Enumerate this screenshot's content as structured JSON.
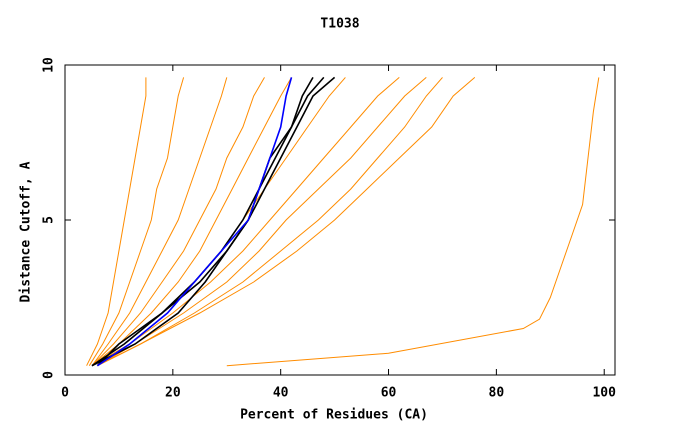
{
  "chart_data": {
    "type": "line",
    "title": "T1038",
    "x_label": "Percent of Residues (CA)",
    "y_label": "Distance Cutoff, A",
    "xlim": [
      0,
      102
    ],
    "ylim": [
      0,
      10
    ],
    "xticks": [
      0,
      20,
      40,
      60,
      80,
      100
    ],
    "yticks": [
      0,
      5,
      10
    ],
    "grid": false,
    "series": [
      {
        "color": "#ff8c00",
        "x": [
          4,
          6,
          8,
          9,
          10,
          11,
          12,
          13,
          14,
          15,
          15
        ],
        "values": [
          0.3,
          1,
          2,
          3,
          4,
          5,
          6,
          7,
          8,
          9,
          9.6
        ]
      },
      {
        "color": "#ff8c00",
        "x": [
          4.5,
          7,
          10,
          12,
          14,
          16,
          17,
          19,
          20,
          21,
          22
        ],
        "values": [
          0.3,
          1,
          2,
          3,
          4,
          5,
          6,
          7,
          8,
          9,
          9.6
        ]
      },
      {
        "color": "#ff8c00",
        "x": [
          5,
          8,
          12,
          15,
          18,
          21,
          23,
          25,
          27,
          29,
          30
        ],
        "values": [
          0.3,
          1,
          2,
          3,
          4,
          5,
          6,
          7,
          8,
          9,
          9.6
        ]
      },
      {
        "color": "#ff8c00",
        "x": [
          5,
          9,
          14,
          18,
          22,
          25,
          28,
          30,
          33,
          35,
          37
        ],
        "values": [
          0.3,
          1,
          2,
          3,
          4,
          5,
          6,
          7,
          8,
          9,
          9.6
        ]
      },
      {
        "color": "#ff8c00",
        "x": [
          5,
          10,
          16,
          21,
          25,
          28,
          31,
          34,
          37,
          40,
          42
        ],
        "values": [
          0.3,
          1,
          2,
          3,
          4,
          5,
          6,
          7,
          8,
          9,
          9.6
        ]
      },
      {
        "color": "#ff8c00",
        "x": [
          5,
          11,
          18,
          24,
          29,
          33,
          37,
          41,
          45,
          49,
          52
        ],
        "values": [
          0.3,
          1,
          2,
          3,
          4,
          5,
          6,
          7,
          8,
          9,
          9.6
        ]
      },
      {
        "color": "#ff8c00",
        "x": [
          5,
          12,
          20,
          27,
          33,
          38,
          43,
          48,
          53,
          58,
          62
        ],
        "values": [
          0.3,
          1,
          2,
          3,
          4,
          5,
          6,
          7,
          8,
          9,
          9.6
        ]
      },
      {
        "color": "#ff8c00",
        "x": [
          6,
          13,
          22,
          30,
          36,
          41,
          47,
          53,
          58,
          63,
          67
        ],
        "values": [
          0.3,
          1,
          2,
          3,
          4,
          5,
          6,
          7,
          8,
          9,
          9.6
        ]
      },
      {
        "color": "#ff8c00",
        "x": [
          6,
          14,
          24,
          33,
          40,
          47,
          53,
          58,
          63,
          67,
          70
        ],
        "values": [
          0.3,
          1,
          2,
          3,
          4,
          5,
          6,
          7,
          8,
          9,
          9.6
        ]
      },
      {
        "color": "#ff8c00",
        "x": [
          6,
          14,
          25,
          35,
          43,
          50,
          56,
          62,
          68,
          72,
          76
        ],
        "values": [
          0.3,
          1,
          2,
          3,
          4,
          5,
          6,
          7,
          8,
          9,
          9.6
        ]
      },
      {
        "color": "#ff8c00",
        "x": [
          30,
          60,
          85,
          88,
          90,
          92,
          94,
          96,
          97,
          98,
          99
        ],
        "values": [
          0.3,
          0.7,
          1.5,
          1.8,
          2.5,
          3.5,
          4.5,
          5.5,
          7,
          8.5,
          9.6
        ]
      },
      {
        "color": "#000000",
        "x": [
          5,
          11,
          18,
          24,
          29,
          33,
          36,
          38,
          42,
          45,
          48
        ],
        "values": [
          0.3,
          1,
          2,
          3,
          4,
          5,
          6,
          7,
          8,
          9,
          9.6
        ]
      },
      {
        "color": "#000000",
        "x": [
          5,
          13,
          21,
          26,
          30,
          34,
          37,
          40,
          43,
          46,
          50
        ],
        "values": [
          0.3,
          1,
          2,
          3,
          4,
          5,
          6,
          7,
          8,
          9,
          9.6
        ]
      },
      {
        "color": "#000000",
        "x": [
          6,
          10,
          18,
          25,
          30,
          34,
          36,
          39,
          42,
          44,
          46
        ],
        "values": [
          0.3,
          1,
          2,
          3,
          4,
          5,
          6,
          7,
          8,
          9,
          9.6
        ]
      },
      {
        "color": "#0000ff",
        "x": [
          6,
          12,
          19,
          24,
          29,
          34,
          36,
          38,
          40,
          41,
          42
        ],
        "values": [
          0.3,
          1,
          2,
          3,
          4,
          5,
          6,
          7,
          8,
          9,
          9.6
        ]
      }
    ]
  }
}
